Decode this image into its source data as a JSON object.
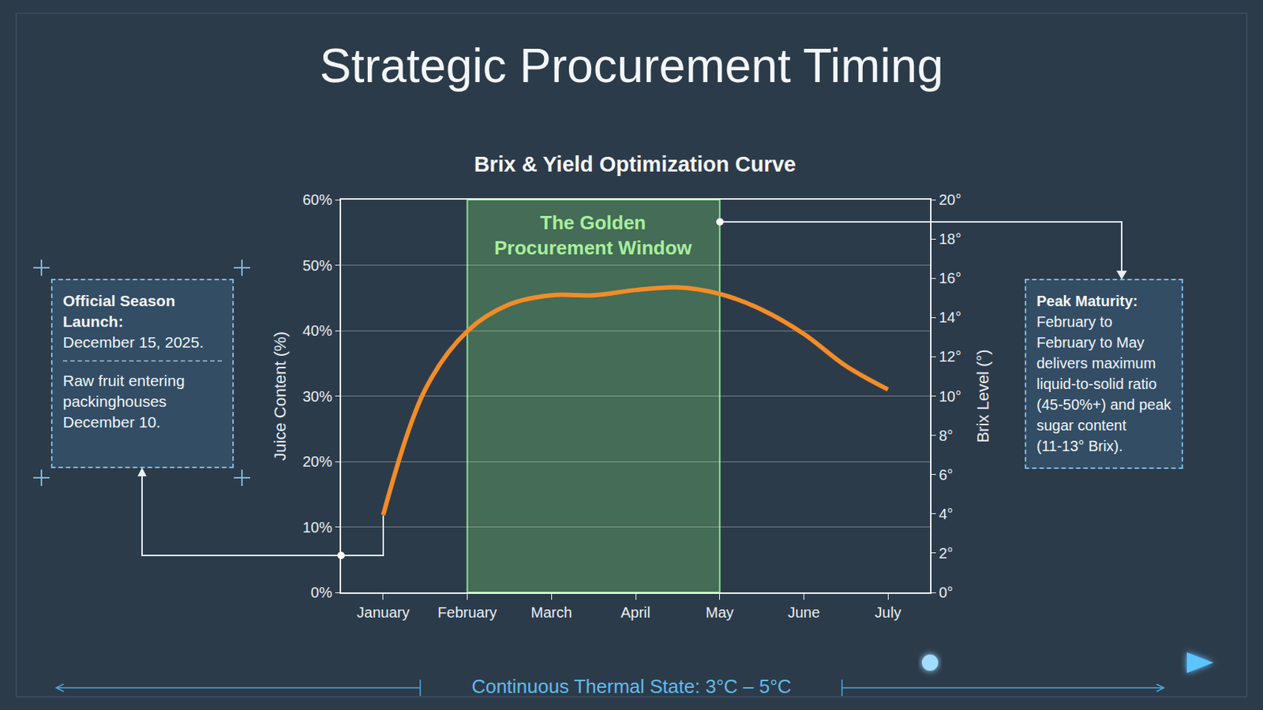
{
  "header": {
    "title": "Strategic Procurement Timing"
  },
  "launch_box": {
    "heading": "Official Season Launch:",
    "lines": [
      "December 15, 2025."
    ],
    "note_lines": [
      "Raw fruit entering",
      "packinghouses",
      "December 10."
    ]
  },
  "maturity_box": {
    "heading": "Peak Maturity:",
    "lines": [
      "February to",
      "February to May",
      "delivers maximum",
      "liquid-to-solid ratio",
      "(45-50%+) and peak",
      "sugar content",
      "(11-13° Brix)."
    ]
  },
  "footer": {
    "text": "Continuous Thermal State: 3°C – 5°C"
  },
  "chart_data": {
    "type": "line",
    "title": "Brix & Yield Optimization Curve",
    "categories": [
      "January",
      null,
      "February",
      null,
      "March",
      null,
      "April",
      null,
      "May",
      null,
      "June",
      null,
      "July"
    ],
    "values": [
      11.8,
      31.0,
      39.9,
      44.0,
      45.4,
      45.4,
      46.2,
      46.6,
      45.6,
      43.2,
      39.5,
      34.6,
      31.0
    ],
    "color": "#f28c28",
    "line_style": "solid",
    "ylabel": "Juice Content (%)",
    "y2label": "Brix Level (°)",
    "ylim": [
      0,
      60
    ],
    "yticks": [
      {
        "value": 0,
        "label": "0%"
      },
      {
        "value": 10,
        "label": "10%"
      },
      {
        "value": 20,
        "label": "20%"
      },
      {
        "value": 30,
        "label": "30%"
      },
      {
        "value": 40,
        "label": "40%"
      },
      {
        "value": 50,
        "label": "50%"
      },
      {
        "value": 60,
        "label": "60%"
      }
    ],
    "y2lim": [
      0,
      20
    ],
    "y2ticks": [
      {
        "value": 0,
        "label": "0°"
      },
      {
        "value": 2,
        "label": "2°"
      },
      {
        "value": 4,
        "label": "4°"
      },
      {
        "value": 6,
        "label": "6°"
      },
      {
        "value": 8,
        "label": "8°"
      },
      {
        "value": 10,
        "label": "10°"
      },
      {
        "value": 12,
        "label": "12°"
      },
      {
        "value": 14,
        "label": "14°"
      },
      {
        "value": 16,
        "label": "16°"
      },
      {
        "value": 18,
        "label": "18°"
      },
      {
        "value": 20,
        "label": "20°"
      }
    ],
    "grid": true,
    "annotations": [
      {
        "text": "The Golden Procurement Window",
        "start": "February",
        "end": "May"
      }
    ]
  }
}
